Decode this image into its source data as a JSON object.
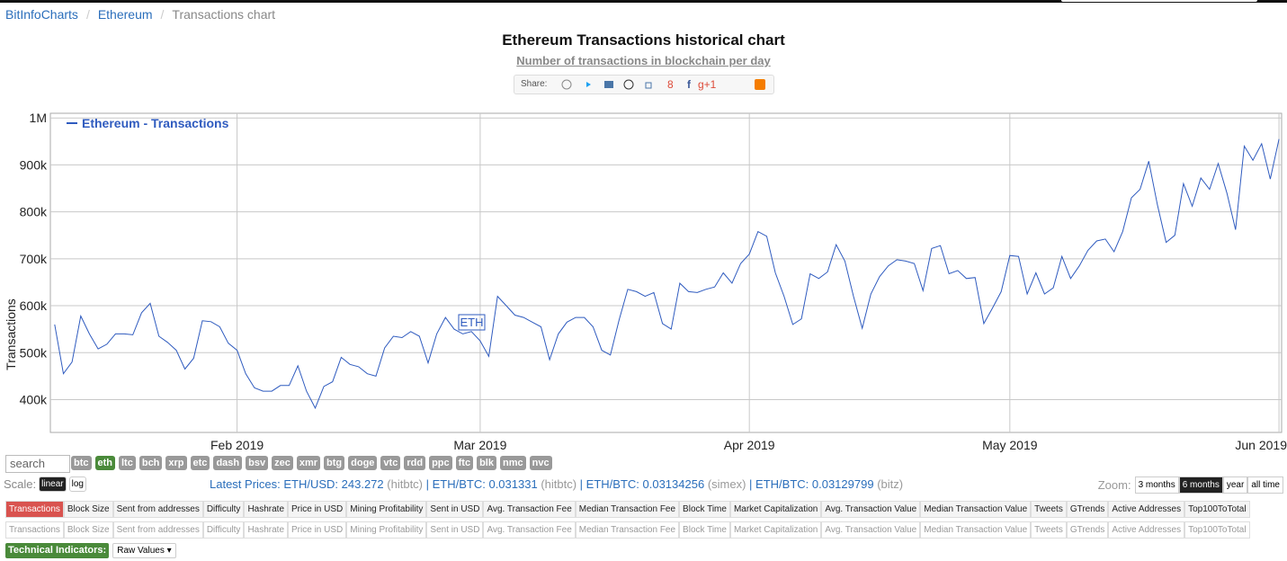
{
  "breadcrumb": [
    "BitInfoCharts",
    "Ethereum",
    "Transactions chart"
  ],
  "share_label": "Share:",
  "search_placeholder": "search",
  "coins": [
    "btc",
    "eth",
    "ltc",
    "bch",
    "xrp",
    "etc",
    "dash",
    "bsv",
    "zec",
    "xmr",
    "btg",
    "doge",
    "vtc",
    "rdd",
    "ppc",
    "ftc",
    "blk",
    "nmc",
    "nvc"
  ],
  "active_coin": 1,
  "scale": {
    "label": "Scale:",
    "options": [
      "linear",
      "log"
    ]
  },
  "latest_prices": [
    {
      "text": "Latest Prices: ETH/USD: 243.272",
      "source": "(hitbtc)"
    },
    {
      "text": "ETH/BTC: 0.031331",
      "source": "(hitbtc)"
    },
    {
      "text": "ETH/BTC: 0.03134256",
      "source": "(simex)"
    },
    {
      "text": "ETH/BTC: 0.03129799",
      "source": "(bitz)"
    }
  ],
  "zoom": {
    "label": "Zoom:",
    "options": [
      "3 months",
      "6 months",
      "year",
      "all time"
    ],
    "active": 1
  },
  "tabs": [
    "Transactions",
    "Block Size",
    "Sent from addresses",
    "Difficulty",
    "Hashrate",
    "Price in USD",
    "Mining Profitability",
    "Sent in USD",
    "Avg. Transaction Fee",
    "Median Transaction Fee",
    "Block Time",
    "Market Capitalization",
    "Avg. Transaction Value",
    "Median Transaction Value",
    "Tweets",
    "GTrends",
    "Active Addresses",
    "Top100ToTotal"
  ],
  "tabs_secondary": [
    "Transactions",
    "Block Size",
    "Sent from addresses",
    "Difficulty",
    "Hashrate",
    "Price in USD",
    "Mining Profitability",
    "Sent in USD",
    "Avg. Transaction Fee",
    "Median Transaction Fee",
    "Block Time",
    "Market Capitalization",
    "Avg. Transaction Value",
    "Median Transaction Value",
    "Tweets",
    "GTrends",
    "Active Addresses",
    "Top100ToTotal"
  ],
  "technical_indicators": {
    "label": "Technical Indicators:",
    "dropdown": "Raw Values ▾"
  },
  "chart_data": {
    "type": "line",
    "title": "Ethereum Transactions historical chart",
    "subtitle": "Number of transactions in blockchain per day",
    "ylabel": "Transactions",
    "annotation": "ETH",
    "grid": true,
    "legend": "top-left",
    "xlim": [
      10.5,
      152.3
    ],
    "xticks": [
      {
        "value": 32,
        "label": "Feb 2019"
      },
      {
        "value": 60,
        "label": "Mar 2019"
      },
      {
        "value": 91,
        "label": "Apr 2019"
      },
      {
        "value": 121,
        "label": "May 2019"
      },
      {
        "value": 152,
        "label": "Jun 2019"
      }
    ],
    "ylim": [
      330000,
      1010000
    ],
    "yticks": [
      {
        "value": 400000,
        "label": "400k"
      },
      {
        "value": 500000,
        "label": "500k"
      },
      {
        "value": 600000,
        "label": "600k"
      },
      {
        "value": 700000,
        "label": "700k"
      },
      {
        "value": 800000,
        "label": "800k"
      },
      {
        "value": 900000,
        "label": "900k"
      },
      {
        "value": 1000000,
        "label": "1M"
      }
    ],
    "x": [
      11,
      12,
      13,
      14,
      15,
      16,
      17,
      18,
      19,
      20,
      21,
      22,
      23,
      24,
      25,
      26,
      27,
      28,
      29,
      30,
      31,
      32,
      33,
      34,
      35,
      36,
      37,
      38,
      39,
      40,
      41,
      42,
      43,
      44,
      45,
      46,
      47,
      48,
      49,
      50,
      51,
      52,
      53,
      54,
      55,
      56,
      57,
      58,
      59,
      60,
      61,
      62,
      63,
      64,
      65,
      66,
      67,
      68,
      69,
      70,
      71,
      72,
      73,
      74,
      75,
      76,
      77,
      78,
      79,
      80,
      81,
      82,
      83,
      84,
      85,
      86,
      87,
      88,
      89,
      90,
      91,
      92,
      93,
      94,
      95,
      96,
      97,
      98,
      99,
      100,
      101,
      102,
      103,
      104,
      105,
      106,
      107,
      108,
      109,
      110,
      111,
      112,
      113,
      114,
      115,
      116,
      117,
      118,
      119,
      120,
      121,
      122,
      123,
      124,
      125,
      126,
      127,
      128,
      129,
      130,
      131,
      132,
      133,
      134,
      135,
      136,
      137,
      138,
      139,
      140,
      141,
      142,
      143,
      144,
      145,
      146,
      147,
      148,
      149,
      150,
      151,
      152
    ],
    "series": [
      {
        "name": "Ethereum - Transactions",
        "color": "#2f5bbf",
        "values": [
          560000,
          455000,
          480000,
          578000,
          540000,
          508000,
          518000,
          540000,
          540000,
          538000,
          585000,
          605000,
          535000,
          522000,
          505000,
          465000,
          488000,
          568000,
          566000,
          555000,
          520000,
          505000,
          455000,
          425000,
          418000,
          418000,
          430000,
          430000,
          472000,
          418000,
          382000,
          428000,
          438000,
          490000,
          475000,
          470000,
          455000,
          450000,
          510000,
          535000,
          532000,
          545000,
          535000,
          478000,
          540000,
          575000,
          550000,
          540000,
          545000,
          525000,
          492000,
          620000,
          600000,
          580000,
          575000,
          565000,
          555000,
          485000,
          540000,
          565000,
          575000,
          575000,
          555000,
          505000,
          495000,
          570000,
          635000,
          630000,
          620000,
          628000,
          562000,
          550000,
          648000,
          630000,
          628000,
          635000,
          640000,
          670000,
          648000,
          690000,
          710000,
          758000,
          748000,
          670000,
          620000,
          560000,
          572000,
          668000,
          658000,
          672000,
          730000,
          695000,
          620000,
          552000,
          625000,
          662000,
          685000,
          698000,
          695000,
          690000,
          632000,
          722000,
          728000,
          668000,
          675000,
          658000,
          660000,
          562000,
          595000,
          630000,
          707000,
          705000,
          625000,
          670000,
          625000,
          638000,
          705000,
          658000,
          685000,
          718000,
          738000,
          742000,
          715000,
          758000,
          830000,
          848000,
          908000,
          815000,
          735000,
          750000,
          860000,
          812000,
          872000,
          848000,
          903000,
          840000,
          762000,
          940000,
          910000,
          945000,
          870000,
          955000
        ]
      }
    ]
  }
}
